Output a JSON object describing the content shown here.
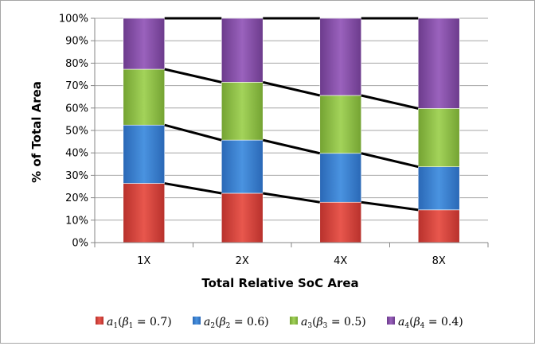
{
  "chart_data": {
    "type": "bar",
    "stacked": true,
    "categories": [
      "1X",
      "2X",
      "4X",
      "8X"
    ],
    "xlabel": "Total Relative SoC Area",
    "ylabel": "% of Total Area",
    "ylim": [
      0,
      100
    ],
    "y_ticks": [
      "0%",
      "10%",
      "20%",
      "30%",
      "40%",
      "50%",
      "60%",
      "70%",
      "80%",
      "90%",
      "100%"
    ],
    "grid": "horizontal",
    "legend_position": "bottom",
    "series": [
      {
        "name": "a",
        "sub": "1",
        "beta_sub": "1",
        "beta_value": "0.7",
        "color": "#c0392b",
        "values": [
          26.4,
          22.0,
          18.0,
          14.6
        ]
      },
      {
        "name": "a",
        "sub": "2",
        "beta_sub": "2",
        "beta_value": "0.6",
        "color": "#2e75c7",
        "values": [
          26.0,
          23.7,
          21.8,
          19.2
        ]
      },
      {
        "name": "a",
        "sub": "3",
        "beta_sub": "3",
        "beta_value": "0.5",
        "color": "#7fb23a",
        "values": [
          24.9,
          25.8,
          25.8,
          26.0
        ]
      },
      {
        "name": "a",
        "sub": "4",
        "beta_sub": "4",
        "beta_value": "0.4",
        "color": "#7e479e",
        "values": [
          22.7,
          28.5,
          34.4,
          40.2
        ]
      }
    ]
  }
}
